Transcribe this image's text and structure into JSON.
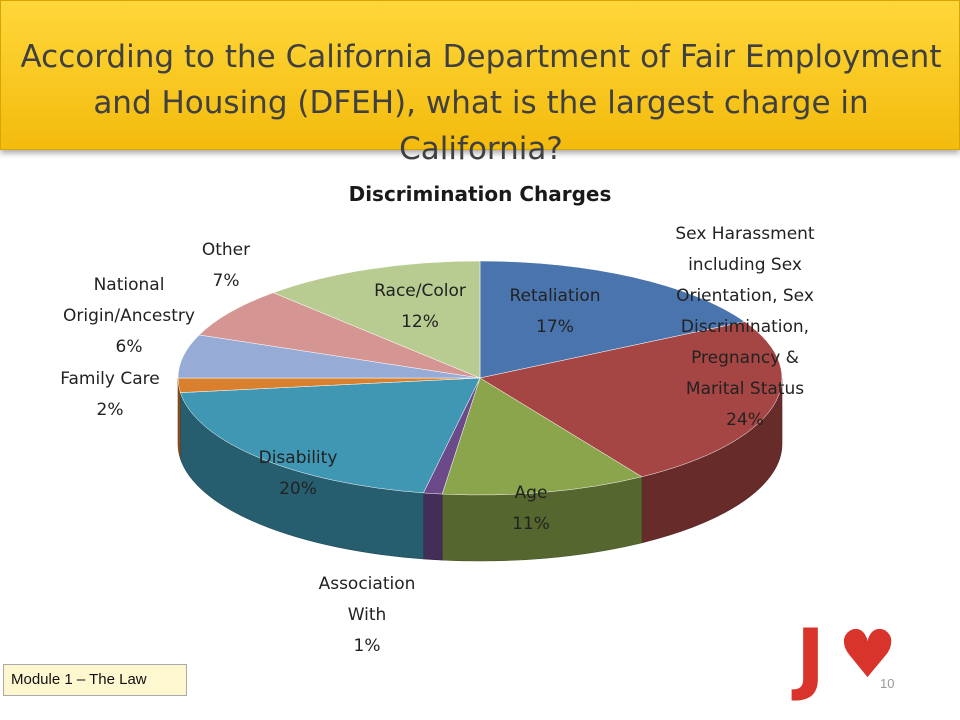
{
  "header": {
    "title": "According to the California Department of Fair Employment and Housing (DFEH), what is the largest charge in California?"
  },
  "chart_data": {
    "type": "pie",
    "style": "3d",
    "title": "Discrimination Charges",
    "slices": [
      {
        "label": [
          "Retaliation"
        ],
        "value": 17,
        "pct": "17%",
        "color": "#4a74ad"
      },
      {
        "label": [
          "Sex Harassment",
          "including Sex",
          "Orientation, Sex",
          "Discrimination,",
          "Pregnancy &",
          "Marital Status"
        ],
        "value": 24,
        "pct": "24%",
        "color": "#a64644"
      },
      {
        "label": [
          "Age"
        ],
        "value": 11,
        "pct": "11%",
        "color": "#8aa54b"
      },
      {
        "label": [
          "Association",
          "With"
        ],
        "value": 1,
        "pct": "1%",
        "color": "#6b4a8a"
      },
      {
        "label": [
          "Disability"
        ],
        "value": 20,
        "pct": "20%",
        "color": "#3f97b3"
      },
      {
        "label": [
          "Family Care"
        ],
        "value": 2,
        "pct": "2%",
        "color": "#d9802f"
      },
      {
        "label": [
          "National",
          "Origin/Ancestry"
        ],
        "value": 6,
        "pct": "6%",
        "color": "#96acd6"
      },
      {
        "label": [
          "Other"
        ],
        "value": 7,
        "pct": "7%",
        "color": "#d59592"
      },
      {
        "label": [
          "Race/Color"
        ],
        "value": 12,
        "pct": "12%",
        "color": "#b8cc92"
      }
    ]
  },
  "footer": {
    "module": "Module 1 – The Law",
    "page_number": "10",
    "logo_letter": "J",
    "logo_heart": "♥"
  }
}
